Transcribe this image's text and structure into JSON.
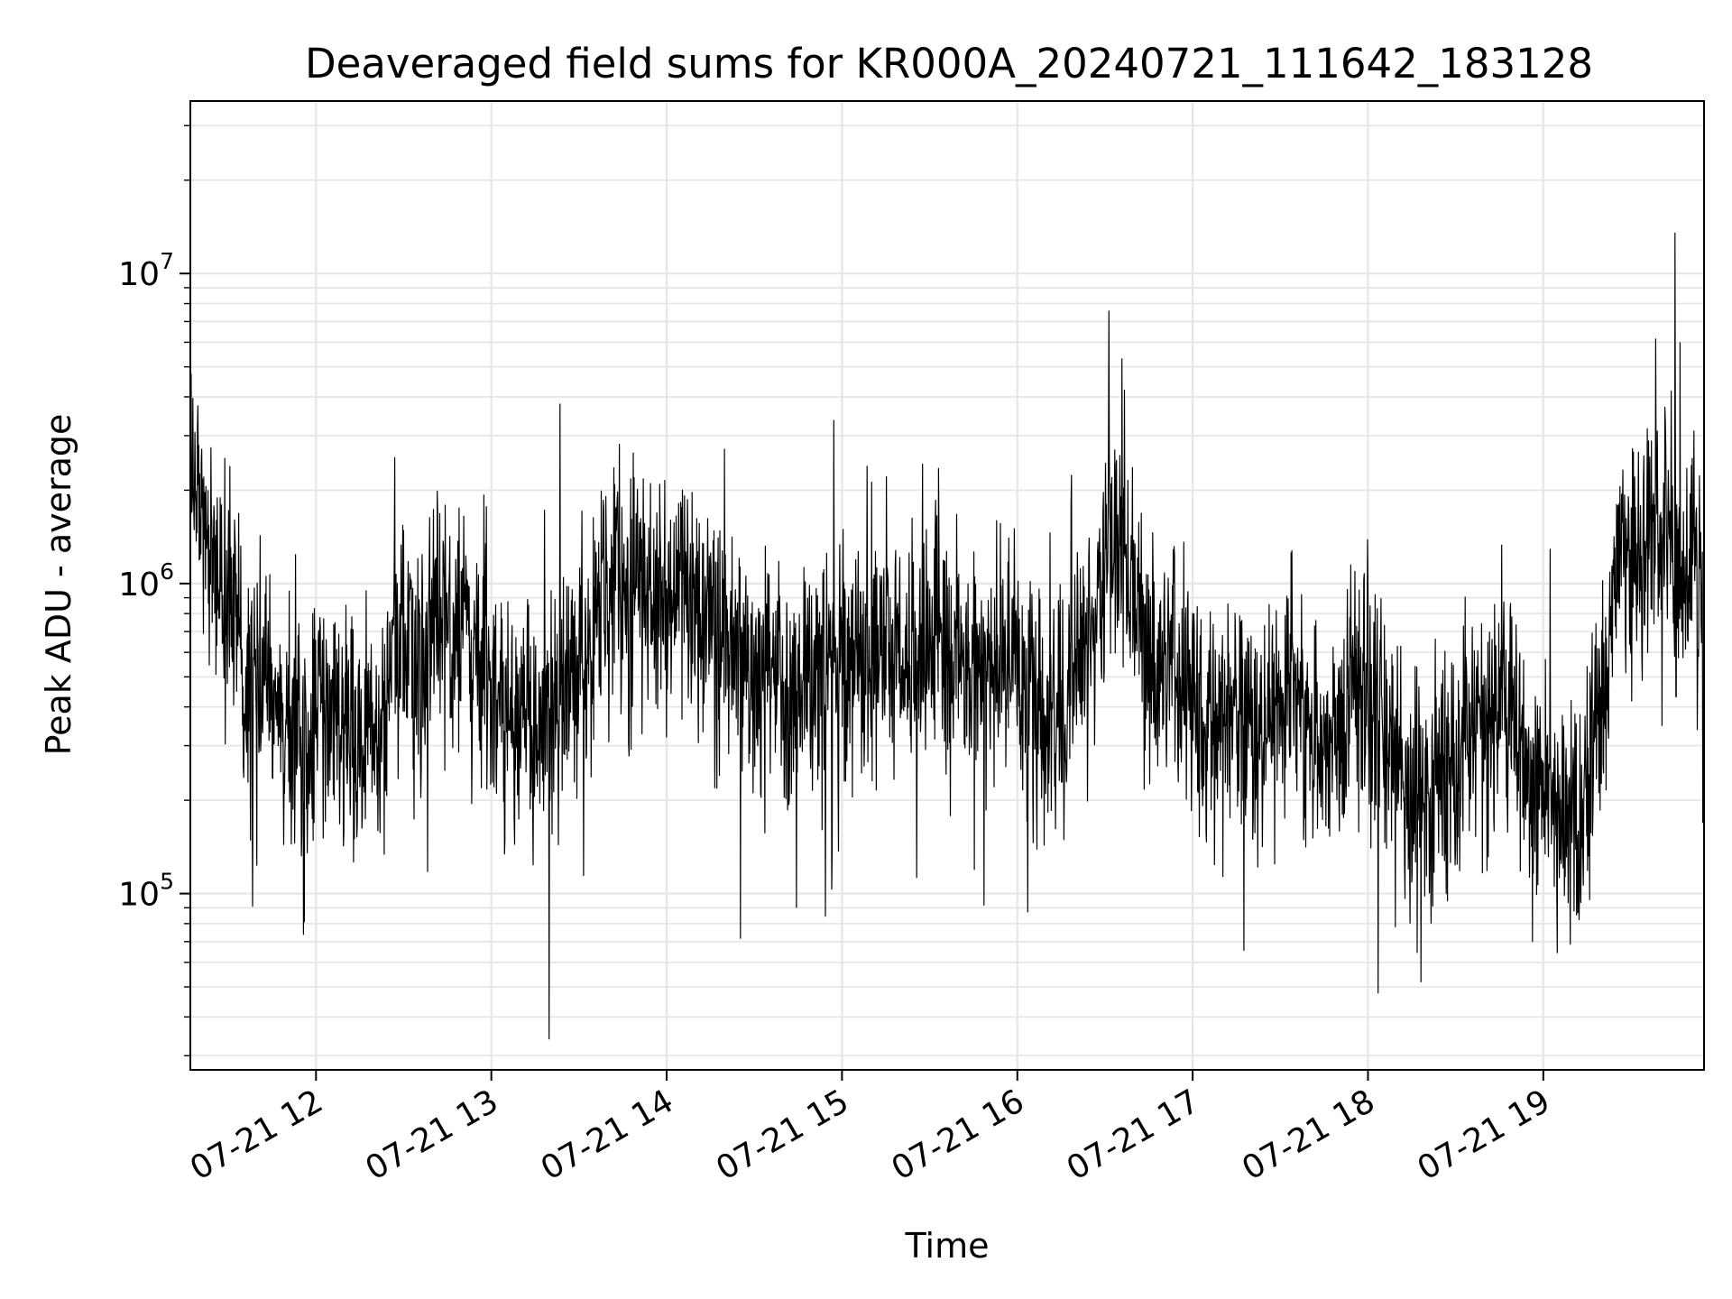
{
  "chart_data": {
    "type": "line",
    "title": "Deaveraged field sums for KR000A_20240721_111642_183128",
    "xlabel": "Time",
    "ylabel": "Peak ADU - average",
    "y_scale": "log",
    "ylim": [
      27000,
      36000000
    ],
    "x_start": "07-21 11:17",
    "x_end": "07-21 19:55",
    "x_ticks": [
      "07-21 12",
      "07-21 13",
      "07-21 14",
      "07-21 15",
      "07-21 16",
      "07-21 17",
      "07-21 18",
      "07-21 19"
    ],
    "y_ticks": [
      {
        "base": "10",
        "exp": "5",
        "value": 100000
      },
      {
        "base": "10",
        "exp": "6",
        "value": 1000000
      },
      {
        "base": "10",
        "exp": "7",
        "value": 10000000
      }
    ],
    "grid": true,
    "line_color": "#000000",
    "grid_color": "#e6e6e6",
    "series": [
      {
        "x": [
          "07-21 11:17",
          "07-21 11:22",
          "07-21 11:27",
          "07-21 11:32",
          "07-21 11:37",
          "07-21 11:42",
          "07-21 11:47",
          "07-21 11:52",
          "07-21 11:57",
          "07-21 12:02",
          "07-21 12:07",
          "07-21 12:12",
          "07-21 12:17",
          "07-21 12:22",
          "07-21 12:27",
          "07-21 12:32",
          "07-21 12:37",
          "07-21 12:42",
          "07-21 12:47",
          "07-21 12:52",
          "07-21 12:57",
          "07-21 13:02",
          "07-21 13:07",
          "07-21 13:12",
          "07-21 13:17",
          "07-21 13:22",
          "07-21 13:27",
          "07-21 13:32",
          "07-21 13:37",
          "07-21 13:42",
          "07-21 13:47",
          "07-21 13:52",
          "07-21 13:57",
          "07-21 14:02",
          "07-21 14:07",
          "07-21 14:12",
          "07-21 14:17",
          "07-21 14:22",
          "07-21 14:27",
          "07-21 14:32",
          "07-21 14:37",
          "07-21 14:42",
          "07-21 14:47",
          "07-21 14:52",
          "07-21 14:57",
          "07-21 15:02",
          "07-21 15:07",
          "07-21 15:12",
          "07-21 15:17",
          "07-21 15:22",
          "07-21 15:27",
          "07-21 15:32",
          "07-21 15:37",
          "07-21 15:42",
          "07-21 15:47",
          "07-21 15:52",
          "07-21 15:57",
          "07-21 16:02",
          "07-21 16:07",
          "07-21 16:12",
          "07-21 16:17",
          "07-21 16:22",
          "07-21 16:27",
          "07-21 16:32",
          "07-21 16:37",
          "07-21 16:42",
          "07-21 16:47",
          "07-21 16:52",
          "07-21 16:57",
          "07-21 17:02",
          "07-21 17:07",
          "07-21 17:12",
          "07-21 17:17",
          "07-21 17:22",
          "07-21 17:27",
          "07-21 17:32",
          "07-21 17:37",
          "07-21 17:42",
          "07-21 17:47",
          "07-21 17:52",
          "07-21 17:57",
          "07-21 18:02",
          "07-21 18:07",
          "07-21 18:12",
          "07-21 18:17",
          "07-21 18:22",
          "07-21 18:27",
          "07-21 18:32",
          "07-21 18:37",
          "07-21 18:42",
          "07-21 18:47",
          "07-21 18:52",
          "07-21 18:57",
          "07-21 19:02",
          "07-21 19:07",
          "07-21 19:12",
          "07-21 19:17",
          "07-21 19:22",
          "07-21 19:27",
          "07-21 19:32",
          "07-21 19:37",
          "07-21 19:42",
          "07-21 19:47",
          "07-21 19:52",
          "07-21 19:55"
        ],
        "y": [
          2800000,
          1200000,
          1000000,
          900000,
          450000,
          500000,
          420000,
          350000,
          300000,
          420000,
          380000,
          350000,
          320000,
          280000,
          650000,
          550000,
          600000,
          700000,
          650000,
          700000,
          600000,
          380000,
          420000,
          350000,
          300000,
          380000,
          450000,
          600000,
          750000,
          1100000,
          900000,
          1000000,
          850000,
          900000,
          1000000,
          650000,
          700000,
          750000,
          500000,
          450000,
          500000,
          420000,
          450000,
          480000,
          550000,
          500000,
          600000,
          550000,
          700000,
          600000,
          550000,
          650000,
          500000,
          600000,
          550000,
          480000,
          650000,
          450000,
          400000,
          350000,
          450000,
          600000,
          900000,
          1500000,
          1200000,
          800000,
          500000,
          550000,
          450000,
          420000,
          350000,
          400000,
          380000,
          350000,
          420000,
          450000,
          380000,
          300000,
          350000,
          400000,
          450000,
          350000,
          300000,
          250000,
          200000,
          180000,
          250000,
          300000,
          350000,
          400000,
          380000,
          300000,
          250000,
          200000,
          180000,
          150000,
          300000,
          500000,
          1500000,
          1200000,
          1400000,
          1500000,
          1100000,
          1200000,
          600000
        ]
      }
    ]
  }
}
